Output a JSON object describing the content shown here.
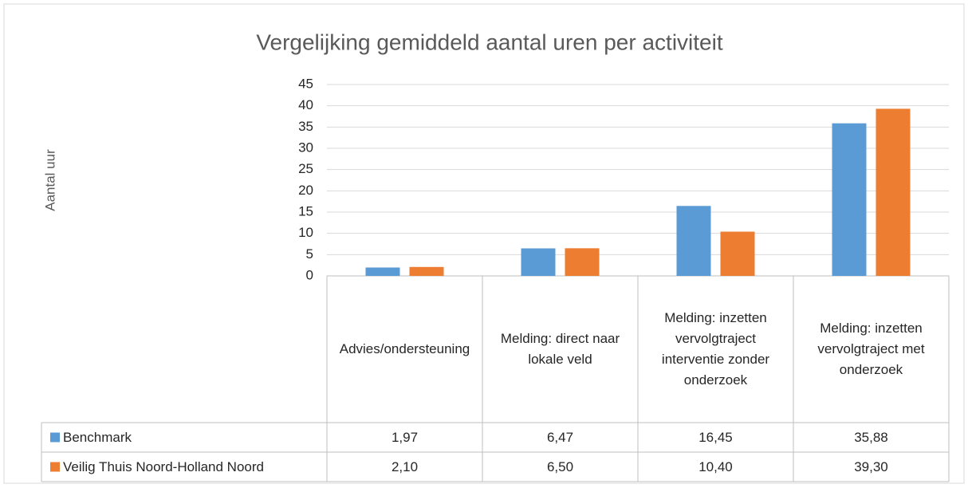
{
  "chart_data": {
    "type": "bar",
    "title": "Vergelijking gemiddeld aantal uren per activiteit",
    "y_label": "Aantal uur",
    "categories": [
      "Advies/ondersteuning",
      "Melding: direct naar lokale veld",
      "Melding: inzetten vervolgtraject interventie zonder onderzoek",
      "Melding: inzetten vervolgtraject met onderzoek"
    ],
    "series": [
      {
        "name": "Benchmark",
        "color": "#5b9bd5",
        "values": [
          1.97,
          6.47,
          16.45,
          35.88
        ],
        "value_labels": [
          "1,97",
          "6,47",
          "16,45",
          "35,88"
        ]
      },
      {
        "name": "Veilig Thuis Noord-Holland Noord",
        "color": "#ed7d31",
        "values": [
          2.1,
          6.5,
          10.4,
          39.3
        ],
        "value_labels": [
          "2,10",
          "6,50",
          "10,40",
          "39,30"
        ]
      }
    ],
    "ylim": [
      0,
      45
    ],
    "yticks": [
      0,
      5,
      10,
      15,
      20,
      25,
      30,
      35,
      40,
      45
    ],
    "grid": true
  }
}
